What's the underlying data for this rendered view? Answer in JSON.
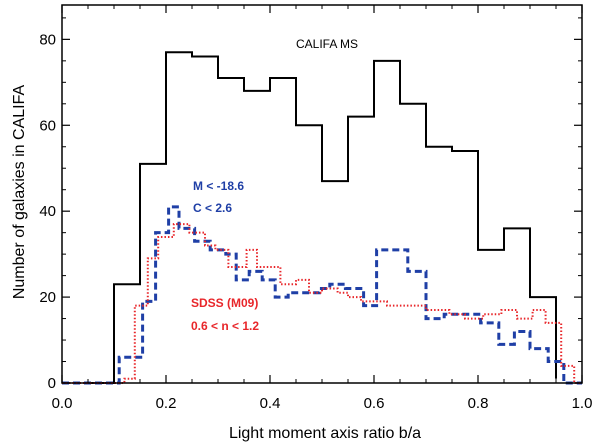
{
  "chart_data": {
    "type": "histogram",
    "xlabel": "Light moment axis ratio b/a",
    "ylabel": "Number of galaxies in CALIFA",
    "xlim": [
      0.0,
      1.0
    ],
    "ylim": [
      0,
      88
    ],
    "x_ticks": [
      0.0,
      0.2,
      0.4,
      0.6,
      0.8,
      1.0
    ],
    "x_tick_labels": [
      "0.0",
      "0.2",
      "0.4",
      "0.6",
      "0.8",
      "1.0"
    ],
    "y_ticks": [
      0,
      20,
      40,
      60,
      80
    ],
    "y_tick_labels": [
      "0",
      "20",
      "40",
      "60",
      "80"
    ],
    "grid": false,
    "bin_edges": [
      0.0,
      0.05,
      0.1,
      0.15,
      0.2,
      0.25,
      0.3,
      0.35,
      0.4,
      0.45,
      0.5,
      0.55,
      0.6,
      0.65,
      0.7,
      0.75,
      0.8,
      0.85,
      0.9,
      0.95,
      1.0
    ],
    "series": [
      {
        "style": "solid",
        "color": "#000000",
        "x": [
          0.05,
          0.1,
          0.15,
          0.2,
          0.25,
          0.3,
          0.35,
          0.4,
          0.45,
          0.5,
          0.55,
          0.6,
          0.65,
          0.7,
          0.75,
          0.8,
          0.85,
          0.9,
          0.95
        ],
        "y": [
          0,
          23,
          51,
          77,
          76,
          71,
          68,
          71,
          60,
          47,
          62,
          75,
          65,
          55,
          54,
          31,
          36,
          20,
          1
        ]
      },
      {
        "style": "dashed",
        "color": "#1f3fa6",
        "x": [
          0.0,
          0.11,
          0.155,
          0.18,
          0.205,
          0.225,
          0.255,
          0.285,
          0.315,
          0.335,
          0.36,
          0.385,
          0.41,
          0.435,
          0.47,
          0.495,
          0.515,
          0.545,
          0.58,
          0.605,
          0.635,
          0.665,
          0.7,
          0.735,
          0.77,
          0.805,
          0.84,
          0.87,
          0.9,
          0.935,
          0.965
        ],
        "y": [
          0,
          6,
          19,
          35,
          41,
          36,
          33,
          31,
          30,
          24,
          26,
          24,
          20,
          21,
          21,
          22,
          23,
          22,
          18,
          31,
          31,
          26,
          15,
          16,
          16,
          14,
          9,
          12,
          8,
          5,
          0
        ]
      },
      {
        "style": "dotted",
        "color": "#e8262a",
        "x": [
          0.0,
          0.12,
          0.14,
          0.165,
          0.185,
          0.215,
          0.245,
          0.275,
          0.295,
          0.32,
          0.355,
          0.375,
          0.395,
          0.42,
          0.45,
          0.475,
          0.5,
          0.53,
          0.55,
          0.575,
          0.6,
          0.625,
          0.66,
          0.7,
          0.745,
          0.775,
          0.81,
          0.845,
          0.875,
          0.905,
          0.93,
          0.96,
          0.985
        ],
        "y": [
          0,
          1,
          18,
          29,
          34,
          37,
          35,
          32,
          31,
          27,
          31,
          27,
          27,
          23,
          24,
          21,
          22,
          21,
          20,
          19,
          19,
          18,
          18,
          17,
          16,
          15,
          16,
          17,
          15,
          17,
          14,
          4,
          0
        ]
      }
    ],
    "annotations": [
      {
        "text": "CALIFA MS",
        "color": "#000000"
      },
      {
        "text": "M < -18.6",
        "color": "#1f3fa6"
      },
      {
        "text": "C < 2.6",
        "color": "#1f3fa6"
      },
      {
        "text": "SDSS (M09)",
        "color": "#e8262a"
      },
      {
        "text": "0.6 < n < 1.2",
        "color": "#e8262a"
      }
    ]
  }
}
